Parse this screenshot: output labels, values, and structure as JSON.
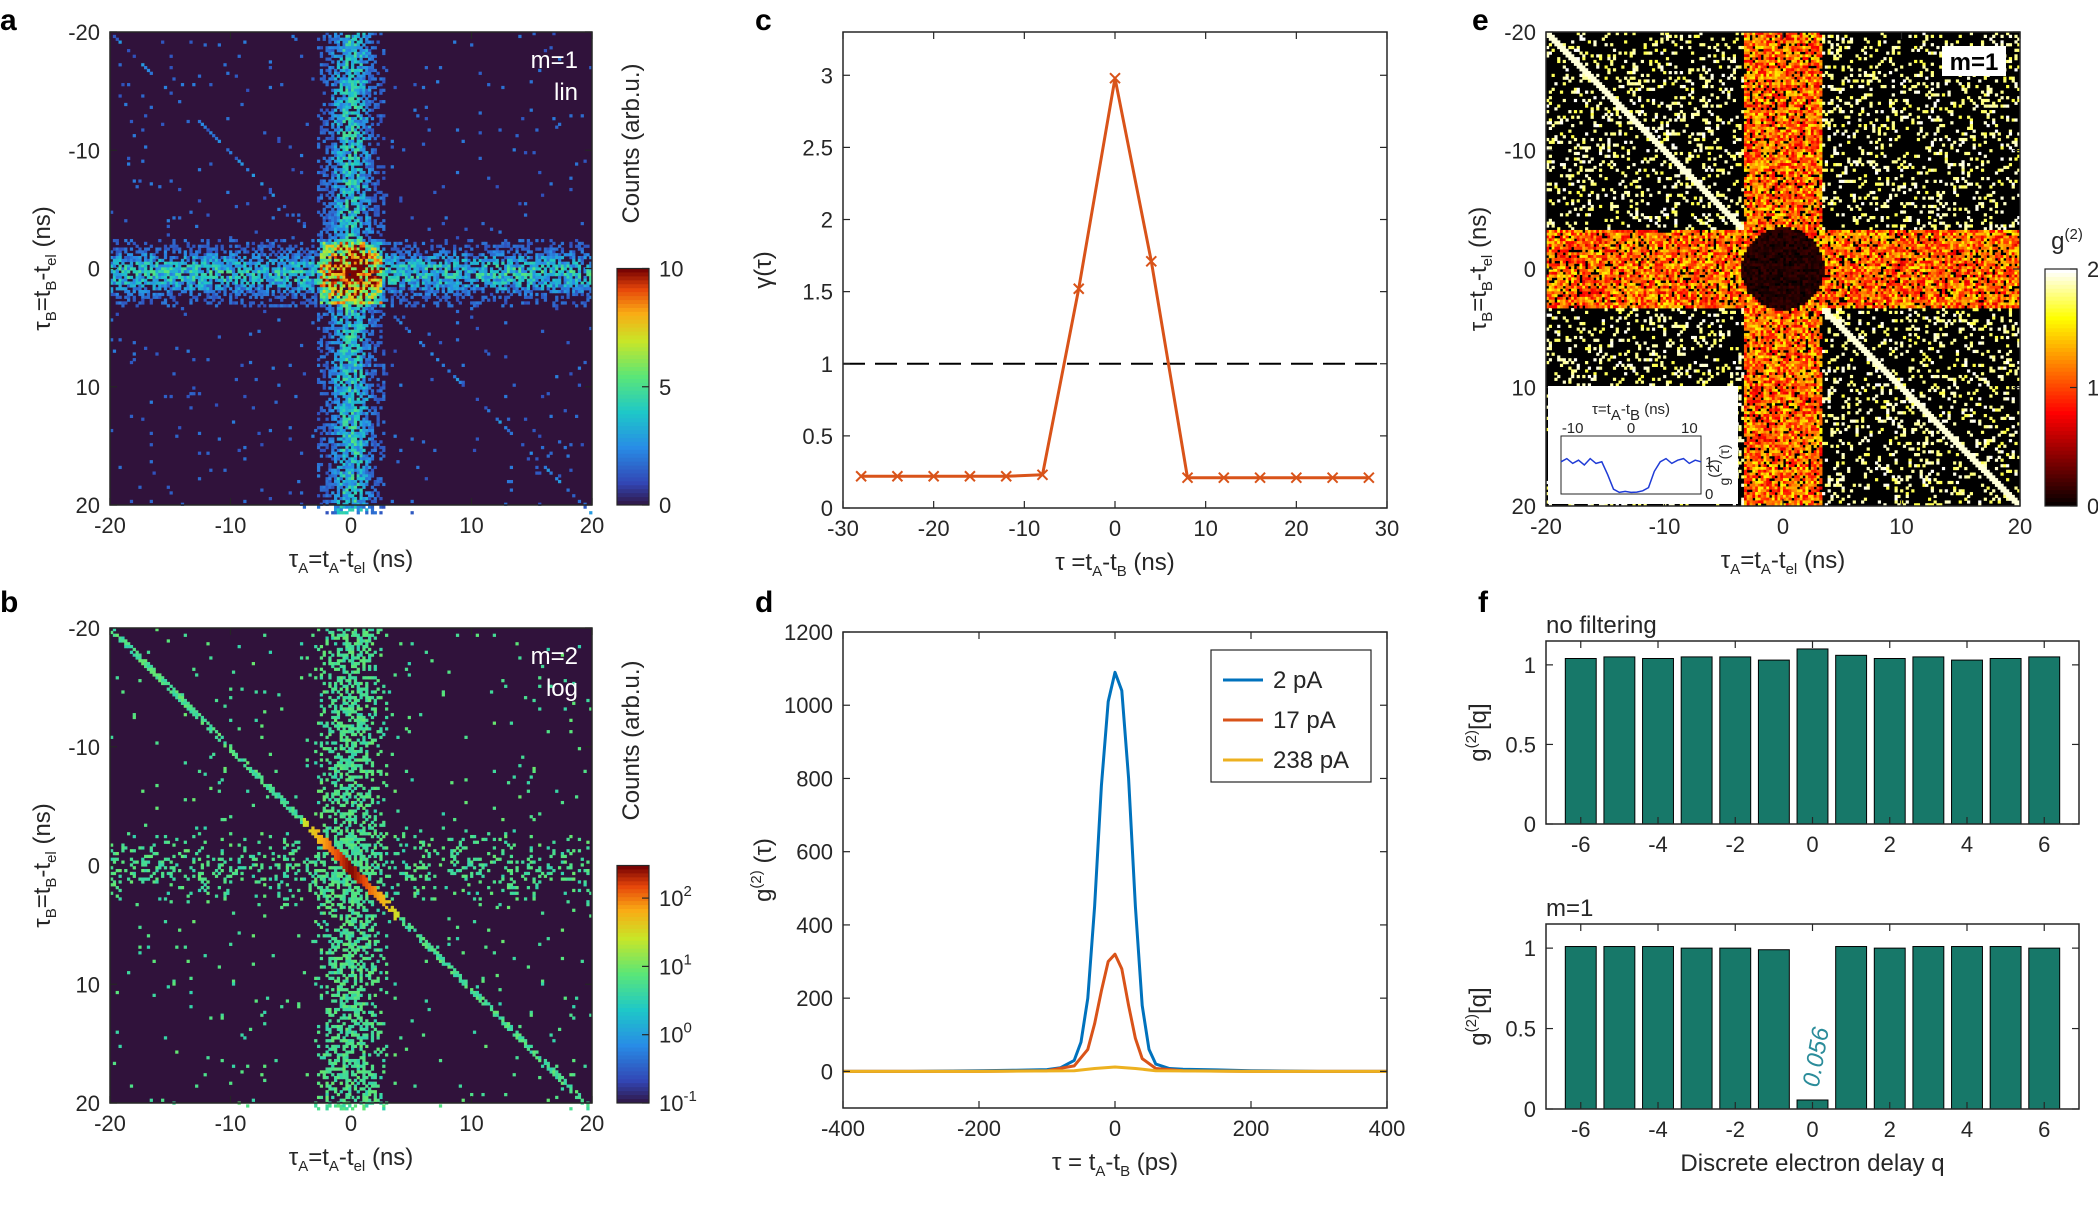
{
  "panel_labels": [
    "a",
    "b",
    "c",
    "d",
    "e",
    "f"
  ],
  "chart_data": [
    {
      "id": "a",
      "type": "heatmap",
      "xlabel": {
        "main": "τ",
        "sub1": "A",
        "mid": "=t",
        "sub2": "A",
        "mid2": "-t",
        "sub3": "el",
        "unit": " (ns)"
      },
      "ylabel": {
        "main": "τ",
        "sub1": "B",
        "mid": "=t",
        "sub2": "B",
        "mid2": "-t",
        "sub3": "el",
        "unit": " (ns)"
      },
      "xlim": [
        -20,
        20
      ],
      "ylim": [
        -20,
        20
      ],
      "xticks": [
        "-20",
        "-10",
        "0",
        "10",
        "20"
      ],
      "yticks": [
        "-20",
        "-10",
        "0",
        "10",
        "20"
      ],
      "annotation": [
        "m=1",
        "lin"
      ],
      "colorbar": {
        "label": "Counts (arb.u.)",
        "range": [
          0,
          10
        ],
        "ticks": [
          "0",
          "5",
          "10"
        ],
        "scale": "linear",
        "colormap": "jet"
      }
    },
    {
      "id": "b",
      "type": "heatmap",
      "xlabel": {
        "main": "τ",
        "sub1": "A",
        "mid": "=t",
        "sub2": "A",
        "mid2": "-t",
        "sub3": "el",
        "unit": " (ns)"
      },
      "ylabel": {
        "main": "τ",
        "sub1": "B",
        "mid": "=t",
        "sub2": "B",
        "mid2": "-t",
        "sub3": "el",
        "unit": " (ns)"
      },
      "xlim": [
        -20,
        20
      ],
      "ylim": [
        -20,
        20
      ],
      "xticks": [
        "-20",
        "-10",
        "0",
        "10",
        "20"
      ],
      "yticks": [
        "-20",
        "-10",
        "0",
        "10",
        "20"
      ],
      "annotation": [
        "m=2",
        "log"
      ],
      "colorbar": {
        "label": "Counts (arb.u.)",
        "range": [
          0.1,
          300
        ],
        "ticks": [
          {
            "b": "10",
            "e": "2"
          },
          {
            "b": "10",
            "e": "1"
          },
          {
            "b": "10",
            "e": "0"
          },
          {
            "b": "10",
            "e": "-1"
          }
        ],
        "scale": "log",
        "colormap": "jet"
      }
    },
    {
      "id": "c",
      "type": "line",
      "ylabel": "γ(τ)",
      "xlabel": {
        "main": "τ =t",
        "sub1": "A",
        "mid": "-t",
        "sub2": "B",
        "unit": " (ns)"
      },
      "xlim": [
        -30,
        30
      ],
      "ylim": [
        0,
        3.3
      ],
      "xticks": [
        "-30",
        "-20",
        "-10",
        "0",
        "10",
        "20",
        "30"
      ],
      "yticks": [
        "0",
        "0.5",
        "1",
        "1.5",
        "2",
        "2.5",
        "3"
      ],
      "reference_line": 1,
      "series": [
        {
          "name": "γ",
          "color": "#d95319",
          "x": [
            -28,
            -24,
            -20,
            -16,
            -12,
            -8,
            -4,
            0,
            4,
            8,
            12,
            16,
            20,
            24,
            28
          ],
          "y": [
            0.22,
            0.22,
            0.22,
            0.22,
            0.22,
            0.23,
            1.52,
            2.98,
            1.71,
            0.21,
            0.21,
            0.21,
            0.21,
            0.21,
            0.21
          ]
        }
      ]
    },
    {
      "id": "d",
      "type": "line",
      "ylabel": {
        "main": "g",
        "sup": "(2)",
        "rest": " (τ)"
      },
      "xlabel": {
        "main": "τ = t",
        "sub1": "A",
        "mid": "-t",
        "sub2": "B",
        "unit": " (ps)"
      },
      "xlim": [
        -400,
        400
      ],
      "ylim": [
        -100,
        1200
      ],
      "xticks": [
        "-400",
        "-200",
        "0",
        "200",
        "400"
      ],
      "yticks": [
        "0",
        "200",
        "400",
        "600",
        "800",
        "1000",
        "1200"
      ],
      "series": [
        {
          "name": "2 pA",
          "color": "#0072bd",
          "x": [
            -400,
            -300,
            -200,
            -150,
            -100,
            -80,
            -60,
            -50,
            -40,
            -30,
            -20,
            -10,
            0,
            10,
            20,
            30,
            40,
            50,
            60,
            80,
            100,
            150,
            200,
            300,
            400
          ],
          "y": [
            0,
            0,
            2,
            3,
            5,
            10,
            30,
            80,
            200,
            450,
            780,
            1010,
            1090,
            1040,
            800,
            450,
            180,
            60,
            20,
            8,
            6,
            4,
            2,
            0,
            0
          ]
        },
        {
          "name": "17 pA",
          "color": "#d95319",
          "x": [
            -400,
            -200,
            -100,
            -60,
            -40,
            -30,
            -20,
            -10,
            0,
            10,
            20,
            30,
            40,
            60,
            100,
            200,
            400
          ],
          "y": [
            0,
            0,
            2,
            15,
            60,
            130,
            220,
            300,
            320,
            280,
            180,
            90,
            35,
            8,
            2,
            0,
            0
          ]
        },
        {
          "name": "238 pA",
          "color": "#edb120",
          "x": [
            -400,
            -200,
            -60,
            -30,
            0,
            30,
            60,
            200,
            400
          ],
          "y": [
            0,
            0,
            2,
            8,
            12,
            8,
            2,
            0,
            0
          ]
        }
      ]
    },
    {
      "id": "e",
      "type": "heatmap",
      "xlabel": {
        "main": "τ",
        "sub1": "A",
        "mid": "=t",
        "sub2": "A",
        "mid2": "-t",
        "sub3": "el",
        "unit": " (ns)"
      },
      "ylabel": {
        "main": "τ",
        "sub1": "B",
        "mid": "=t",
        "sub2": "B",
        "mid2": "-t",
        "sub3": "el",
        "unit": " (ns)"
      },
      "xlim": [
        -20,
        20
      ],
      "ylim": [
        -20,
        20
      ],
      "xticks": [
        "-20",
        "-10",
        "0",
        "10",
        "20"
      ],
      "yticks": [
        "-20",
        "-10",
        "0",
        "10",
        "20"
      ],
      "annotation": [
        "m=1"
      ],
      "colorbar": {
        "label": {
          "main": "g",
          "sup": "(2)"
        },
        "range": [
          0,
          2
        ],
        "ticks": [
          "0",
          "1",
          "2"
        ],
        "scale": "linear",
        "colormap": "hot"
      },
      "inset": {
        "title": {
          "main": "τ=t",
          "sub1": "A",
          "mid": "-t",
          "sub2": "B",
          "unit": " (ns)"
        },
        "ylabel": {
          "main": "g",
          "sup": "(2)",
          "rest": "(τ)"
        },
        "xticks": [
          "-10",
          "0",
          "10"
        ],
        "yticks": [
          "0",
          "1"
        ],
        "xlim": [
          -12,
          12
        ],
        "ylim": [
          0,
          1.8
        ],
        "series": {
          "color": "#1f3bd6",
          "x": [
            -12,
            -11,
            -10,
            -9,
            -8,
            -7,
            -6,
            -5,
            -4,
            -3,
            -2,
            -1,
            0,
            1,
            2,
            3,
            4,
            5,
            6,
            7,
            8,
            9,
            10,
            11,
            12
          ],
          "y": [
            1.0,
            1.1,
            0.95,
            1.05,
            0.9,
            1.1,
            0.95,
            1.0,
            0.6,
            0.15,
            0.05,
            0.08,
            0.05,
            0.06,
            0.1,
            0.2,
            0.7,
            1.0,
            1.1,
            0.95,
            1.05,
            1.1,
            0.95,
            1.05,
            1.0
          ]
        }
      }
    },
    {
      "id": "f1",
      "type": "bar",
      "title": "no filtering",
      "ylabel": {
        "main": "g",
        "sup": "(2)",
        "rest": "[q]"
      },
      "xlim": [
        -6.9,
        6.9
      ],
      "ylim": [
        0,
        1.15
      ],
      "xticks": [
        "-6",
        "-4",
        "-2",
        "0",
        "2",
        "4",
        "6"
      ],
      "yticks": [
        "0",
        "0.5",
        "1"
      ],
      "bar_color": "#177869",
      "categories": [
        -6,
        -5,
        -4,
        -3,
        -2,
        -1,
        0,
        1,
        2,
        3,
        4,
        5,
        6
      ],
      "values": [
        1.04,
        1.05,
        1.04,
        1.05,
        1.05,
        1.03,
        1.1,
        1.06,
        1.04,
        1.05,
        1.03,
        1.04,
        1.05
      ]
    },
    {
      "id": "f2",
      "type": "bar",
      "title": "m=1",
      "ylabel": {
        "main": "g",
        "sup": "(2)",
        "rest": "[q]"
      },
      "xlabel": "Discrete electron delay q",
      "xlim": [
        -6.9,
        6.9
      ],
      "ylim": [
        0,
        1.15
      ],
      "xticks": [
        "-6",
        "-4",
        "-2",
        "0",
        "2",
        "4",
        "6"
      ],
      "yticks": [
        "0",
        "0.5",
        "1"
      ],
      "bar_color": "#177869",
      "categories": [
        -6,
        -5,
        -4,
        -3,
        -2,
        -1,
        0,
        1,
        2,
        3,
        4,
        5,
        6
      ],
      "values": [
        1.01,
        1.01,
        1.01,
        1.0,
        1.0,
        0.99,
        0.056,
        1.01,
        1.0,
        1.01,
        1.01,
        1.01,
        1.0
      ],
      "data_label": "0.056",
      "data_label_color": "#2b8c9a"
    }
  ]
}
